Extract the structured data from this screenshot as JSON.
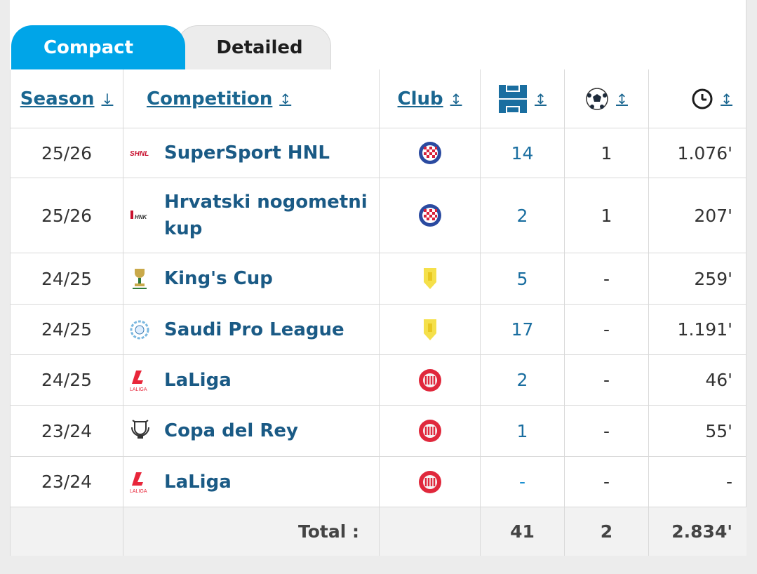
{
  "tabs": [
    {
      "label": "Compact",
      "active": true
    },
    {
      "label": "Detailed",
      "active": false
    }
  ],
  "columns": {
    "season": "Season",
    "season_sort": "↓",
    "competition": "Competition",
    "competition_sort": "↕",
    "club": "Club",
    "club_sort": "↕",
    "appearances_icon": "pitch-icon",
    "appearances_sort": "↕",
    "goals_icon": "ball-icon",
    "goals_sort": "↕",
    "minutes_icon": "clock-icon",
    "minutes_sort": "↕"
  },
  "rows": [
    {
      "season": "25/26",
      "competition": "SuperSport HNL",
      "comp_icon": "hnl-logo",
      "club": "hajduk",
      "appearances": "14",
      "goals": "1",
      "minutes": "1.076'"
    },
    {
      "season": "25/26",
      "competition": "Hrvatski nogometni kup",
      "comp_icon": "hnk-cup-logo",
      "club": "hajduk",
      "appearances": "2",
      "goals": "1",
      "minutes": "207'"
    },
    {
      "season": "24/25",
      "competition": "King's Cup",
      "comp_icon": "kings-cup-logo",
      "club": "al-taawoun",
      "appearances": "5",
      "goals": "-",
      "minutes": "259'"
    },
    {
      "season": "24/25",
      "competition": "Saudi Pro League",
      "comp_icon": "spl-logo",
      "club": "al-taawoun",
      "appearances": "17",
      "goals": "-",
      "minutes": "1.191'"
    },
    {
      "season": "24/25",
      "competition": "LaLiga",
      "comp_icon": "laliga-logo",
      "club": "girona",
      "appearances": "2",
      "goals": "-",
      "minutes": "46'"
    },
    {
      "season": "23/24",
      "competition": "Copa del Rey",
      "comp_icon": "copa-del-rey-logo",
      "club": "girona",
      "appearances": "1",
      "goals": "-",
      "minutes": "55'"
    },
    {
      "season": "23/24",
      "competition": "LaLiga",
      "comp_icon": "laliga-logo",
      "club": "girona",
      "appearances": "-",
      "goals": "-",
      "minutes": "-"
    }
  ],
  "totals": {
    "label": "Total :",
    "appearances": "41",
    "goals": "2",
    "minutes": "2.834'"
  },
  "colors": {
    "accent": "#00a5e8",
    "link": "#1a5a85",
    "hajduk_blue": "#2a4aa0",
    "hajduk_red": "#d8213b",
    "girona_red": "#e0283c",
    "taawoun_yellow": "#f5e04a"
  }
}
